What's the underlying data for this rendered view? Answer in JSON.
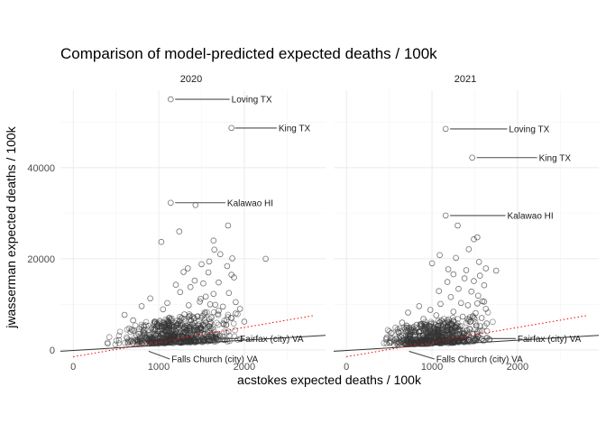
{
  "chart_data": {
    "type": "scatter",
    "title": "Comparison of model-predicted expected deaths / 100k",
    "xlabel": "acstokes expected deaths / 100k",
    "ylabel": "jwasserman expected deaths / 100k",
    "xlim": [
      -150,
      2950
    ],
    "ylim": [
      -2000,
      57000
    ],
    "x_ticks": [
      0,
      1000,
      2000
    ],
    "y_ticks": [
      0,
      20000,
      40000
    ],
    "x_tick_labels": [
      "0",
      "1000",
      "2000"
    ],
    "y_tick_labels": [
      "0",
      "20000",
      "40000"
    ],
    "grid": true,
    "colors": {
      "points": "#333333",
      "fit_line": "#333333",
      "identity_line": "#ff0000",
      "label_segment": "#4d4d4d"
    },
    "panels": [
      {
        "name": "2020",
        "fit_line": [
          [
            -150,
            -300
          ],
          [
            2950,
            3200
          ]
        ],
        "identity_line": [
          [
            0,
            -1500
          ],
          [
            2800,
            7500
          ]
        ],
        "points": [
          [
            1140,
            55000
          ],
          [
            1850,
            48700
          ],
          [
            1140,
            32300
          ],
          [
            1430,
            31800
          ],
          [
            1030,
            23700
          ],
          [
            1640,
            24000
          ],
          [
            1860,
            20100
          ],
          [
            2250,
            20000
          ],
          [
            1650,
            22000
          ],
          [
            1720,
            21000
          ],
          [
            1500,
            18800
          ],
          [
            1590,
            19400
          ],
          [
            1800,
            18400
          ],
          [
            1340,
            17900
          ],
          [
            1580,
            17000
          ],
          [
            1850,
            16500
          ],
          [
            1420,
            15200
          ],
          [
            1520,
            14600
          ],
          [
            1700,
            14800
          ],
          [
            1200,
            14300
          ],
          [
            1370,
            13800
          ],
          [
            1820,
            12500
          ],
          [
            1250,
            12700
          ],
          [
            1640,
            12300
          ],
          [
            1550,
            11700
          ],
          [
            1490,
            11200
          ],
          [
            1900,
            10500
          ],
          [
            1600,
            10000
          ],
          [
            900,
            11300
          ],
          [
            1100,
            10300
          ],
          [
            1350,
            9800
          ],
          [
            1750,
            9500
          ],
          [
            1950,
            9000
          ],
          [
            1700,
            8600
          ],
          [
            800,
            9600
          ],
          [
            1050,
            8900
          ],
          [
            600,
            7700
          ],
          [
            1300,
            7800
          ],
          [
            1450,
            7300
          ],
          [
            1850,
            7000
          ],
          [
            1150,
            6900
          ],
          [
            2000,
            6200
          ],
          [
            700,
            6500
          ],
          [
            950,
            6200
          ],
          [
            1550,
            6000
          ],
          [
            1240,
            26000
          ],
          [
            1810,
            27300
          ],
          [
            1900,
            8000
          ],
          [
            1660,
            9900
          ],
          [
            1480,
            10600
          ],
          [
            1880,
            15900
          ],
          [
            1290,
            17100
          ],
          [
            1760,
            5600
          ],
          [
            1590,
            5200
          ],
          [
            980,
            5700
          ],
          [
            1210,
            5400
          ]
        ],
        "cluster": {
          "x_range": [
            280,
            2100
          ],
          "center_x": 900,
          "baseline_y": 1500,
          "spread_y": 2200
        },
        "labels": [
          {
            "text": "Loving TX",
            "x": 1160,
            "y": 55000,
            "label_x": 1850,
            "label_y": 55000
          },
          {
            "text": "King TX",
            "x": 1860,
            "y": 48700,
            "label_x": 2400,
            "label_y": 48700
          },
          {
            "text": "Kalawao HI",
            "x": 1160,
            "y": 32300,
            "label_x": 1800,
            "label_y": 32300
          },
          {
            "text": "Fairfax (city) VA",
            "x": 1700,
            "y": 2500,
            "label_x": 1950,
            "label_y": 2500
          },
          {
            "text": "Falls Church (city) VA",
            "x": 850,
            "y": -300,
            "label_x": 1150,
            "label_y": -2000
          }
        ]
      },
      {
        "name": "2021",
        "fit_line": [
          [
            -150,
            -300
          ],
          [
            2950,
            3200
          ]
        ],
        "identity_line": [
          [
            0,
            -1500
          ],
          [
            2800,
            7500
          ]
        ],
        "points": [
          [
            1160,
            48500
          ],
          [
            1470,
            42200
          ],
          [
            1160,
            29500
          ],
          [
            1300,
            27300
          ],
          [
            1090,
            20800
          ],
          [
            1490,
            24300
          ],
          [
            1530,
            24700
          ],
          [
            1430,
            22100
          ],
          [
            1550,
            19300
          ],
          [
            1000,
            19000
          ],
          [
            1190,
            17700
          ],
          [
            1630,
            17900
          ],
          [
            1750,
            17400
          ],
          [
            1400,
            17500
          ],
          [
            1560,
            16300
          ],
          [
            1250,
            16600
          ],
          [
            1380,
            15700
          ],
          [
            1490,
            15100
          ],
          [
            1180,
            14900
          ],
          [
            1610,
            14200
          ],
          [
            1310,
            13400
          ],
          [
            1460,
            12800
          ],
          [
            1080,
            12900
          ],
          [
            1540,
            11900
          ],
          [
            1220,
            11600
          ],
          [
            1590,
            10700
          ],
          [
            1340,
            10300
          ],
          [
            1100,
            10100
          ],
          [
            850,
            9600
          ],
          [
            1420,
            9800
          ],
          [
            1630,
            9000
          ],
          [
            980,
            8800
          ],
          [
            1250,
            8400
          ],
          [
            1510,
            8100
          ],
          [
            720,
            8200
          ],
          [
            1050,
            7600
          ],
          [
            1360,
            7300
          ],
          [
            1580,
            7000
          ],
          [
            900,
            6800
          ],
          [
            1180,
            6500
          ],
          [
            650,
            6000
          ],
          [
            1450,
            6200
          ],
          [
            1280,
            20200
          ],
          [
            1530,
            10200
          ],
          [
            1610,
            10600
          ],
          [
            820,
            5500
          ],
          [
            1070,
            5300
          ],
          [
            1640,
            5800
          ]
        ],
        "cluster": {
          "x_range": [
            300,
            1800
          ],
          "center_x": 850,
          "baseline_y": 1500,
          "spread_y": 2000
        },
        "labels": [
          {
            "text": "Loving TX",
            "x": 1180,
            "y": 48500,
            "label_x": 1900,
            "label_y": 48500
          },
          {
            "text": "King TX",
            "x": 1490,
            "y": 42200,
            "label_x": 2250,
            "label_y": 42200
          },
          {
            "text": "Kalawao HI",
            "x": 1180,
            "y": 29500,
            "label_x": 1880,
            "label_y": 29500
          },
          {
            "text": "Fairfax (city) VA",
            "x": 1550,
            "y": 2500,
            "label_x": 2000,
            "label_y": 2500
          },
          {
            "text": "Falls Church (city) VA",
            "x": 700,
            "y": -300,
            "label_x": 1050,
            "label_y": -2000
          }
        ]
      }
    ]
  }
}
